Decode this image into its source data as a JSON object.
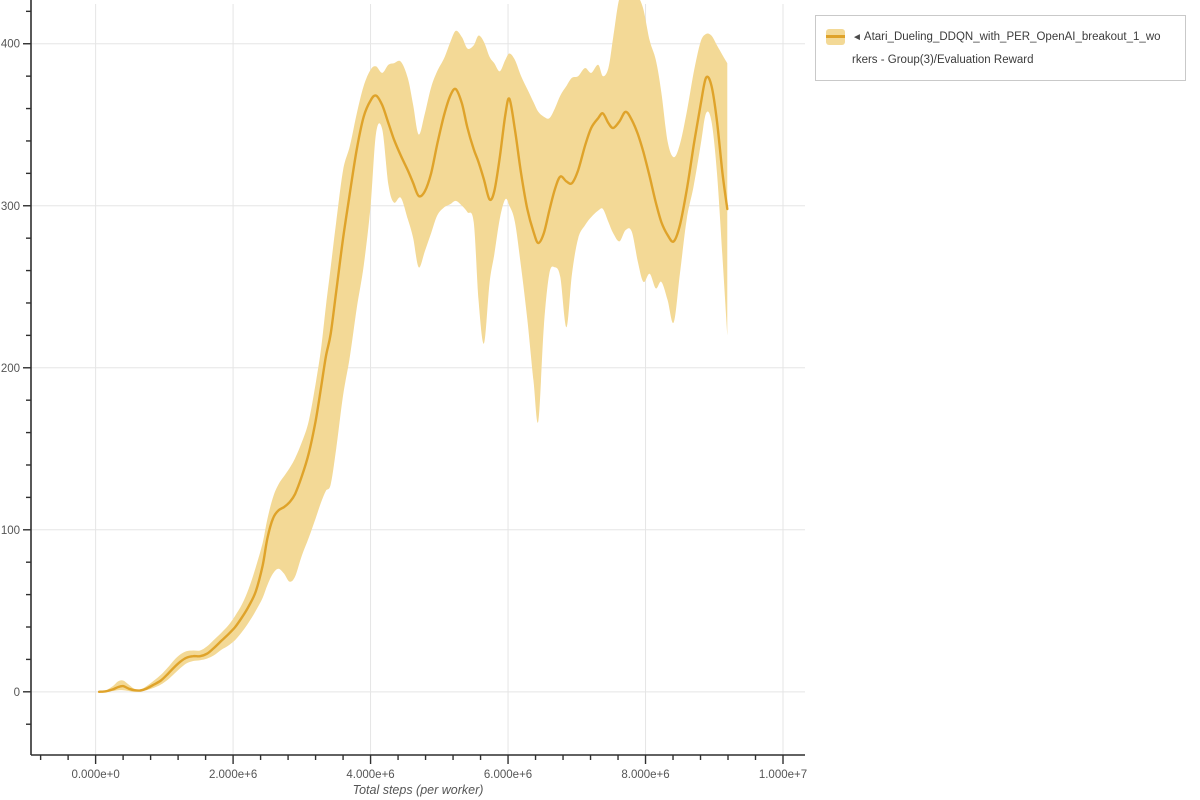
{
  "legend": {
    "prefix_icon": "◄",
    "label_line1": "Atari_Dueling_DDQN_with_PER_OpenAI_breakout_1_wo",
    "label_line2": "rkers - Group(3)/Evaluation Reward",
    "series_full_name": "Atari_Dueling_DDQN_with_PER_OpenAI_breakout_1_workers - Group(3)/Evaluation Reward"
  },
  "colors": {
    "line": "#dfa32a",
    "band": "#f3d996",
    "grid": "#e5e5e5",
    "axis": "#2f2f2f",
    "tick_text": "#555555",
    "legend_border": "#c9c9c9",
    "background": "#ffffff"
  },
  "chart_data": {
    "type": "line",
    "title": "",
    "xlabel": "Total steps (per worker)",
    "ylabel": "",
    "legend_position": "top-right-outside",
    "grid": true,
    "x_unit": "steps (e6)",
    "x_tick_values_e6": [
      0,
      2,
      4,
      6,
      8,
      10
    ],
    "x_tick_labels": [
      "0.000e+0",
      "2.000e+6",
      "4.000e+6",
      "6.000e+6",
      "8.000e+6",
      "1.000e+7"
    ],
    "x_minor_step_e6": 0.4,
    "y_tick_values": [
      0,
      100,
      200,
      300,
      400
    ],
    "y_tick_labels": [
      "0",
      "100",
      "200",
      "300",
      "400"
    ],
    "y_minor_step": 20,
    "xlim_e6": [
      -0.94,
      10.32
    ],
    "ylim": [
      -39,
      427
    ],
    "series": [
      {
        "name": "Atari_Dueling_DDQN_with_PER_OpenAI_breakout_1_workers - Group(3)/Evaluation Reward",
        "color": "#dfa32a",
        "band_color": "#f3d996",
        "points_format": [
          "step_e6",
          "lower",
          "mean",
          "upper"
        ],
        "points": [
          [
            0.05,
            0,
            0,
            0.5
          ],
          [
            0.15,
            0,
            0.3,
            1
          ],
          [
            0.25,
            0.5,
            1.5,
            3.5
          ],
          [
            0.33,
            1,
            3,
            6.5
          ],
          [
            0.4,
            1,
            3.5,
            7
          ],
          [
            0.48,
            0.5,
            2,
            4.5
          ],
          [
            0.56,
            0,
            1,
            2
          ],
          [
            0.65,
            0.3,
            0.8,
            1.5
          ],
          [
            0.74,
            1,
            2,
            3.5
          ],
          [
            0.85,
            2.5,
            4.5,
            7
          ],
          [
            0.95,
            4.5,
            7,
            10.5
          ],
          [
            1.05,
            7.5,
            11,
            15
          ],
          [
            1.14,
            11,
            15,
            19.5
          ],
          [
            1.23,
            14.5,
            18.5,
            23
          ],
          [
            1.32,
            17.5,
            21,
            25
          ],
          [
            1.42,
            19,
            22,
            25.5
          ],
          [
            1.52,
            19.5,
            22,
            25.5
          ],
          [
            1.62,
            20.5,
            23.5,
            28
          ],
          [
            1.72,
            22.5,
            27,
            32
          ],
          [
            1.83,
            26,
            31.5,
            36.5
          ],
          [
            1.93,
            28.5,
            35.5,
            41
          ],
          [
            2.03,
            32,
            40,
            47
          ],
          [
            2.13,
            37,
            46,
            54
          ],
          [
            2.23,
            43,
            53,
            64
          ],
          [
            2.33,
            50,
            62,
            77
          ],
          [
            2.43,
            58,
            78,
            92
          ],
          [
            2.5,
            66,
            95,
            107
          ],
          [
            2.58,
            73,
            107,
            120
          ],
          [
            2.66,
            76,
            112,
            128
          ],
          [
            2.74,
            73,
            114,
            133
          ],
          [
            2.82,
            68,
            117,
            138
          ],
          [
            2.9,
            71,
            122,
            144
          ],
          [
            3.0,
            84,
            133,
            154
          ],
          [
            3.1,
            95,
            147,
            167
          ],
          [
            3.2,
            107,
            167,
            190
          ],
          [
            3.28,
            117,
            188,
            212
          ],
          [
            3.35,
            124,
            207,
            238
          ],
          [
            3.42,
            128,
            221,
            262
          ],
          [
            3.5,
            150,
            247,
            290
          ],
          [
            3.6,
            183,
            280,
            322
          ],
          [
            3.7,
            207,
            308,
            337
          ],
          [
            3.8,
            237,
            335,
            357
          ],
          [
            3.9,
            263,
            355,
            374
          ],
          [
            4.0,
            300,
            365,
            384
          ],
          [
            4.08,
            345,
            368,
            386
          ],
          [
            4.17,
            347,
            362,
            382
          ],
          [
            4.26,
            313,
            351,
            387
          ],
          [
            4.34,
            302,
            341,
            388
          ],
          [
            4.44,
            305,
            331,
            389
          ],
          [
            4.54,
            292,
            322,
            379
          ],
          [
            4.62,
            280,
            314,
            362
          ],
          [
            4.7,
            262,
            306,
            344
          ],
          [
            4.79,
            272,
            309,
            357
          ],
          [
            4.88,
            283,
            320,
            373
          ],
          [
            4.97,
            294,
            338,
            383
          ],
          [
            5.07,
            299,
            356,
            391
          ],
          [
            5.16,
            301,
            368,
            401
          ],
          [
            5.24,
            303,
            372,
            408
          ],
          [
            5.33,
            300,
            363,
            404
          ],
          [
            5.41,
            296,
            348,
            397
          ],
          [
            5.5,
            290,
            335,
            399
          ],
          [
            5.57,
            242,
            327,
            405
          ],
          [
            5.65,
            215,
            316,
            401
          ],
          [
            5.73,
            252,
            304,
            392
          ],
          [
            5.8,
            270,
            309,
            388
          ],
          [
            5.88,
            292,
            330,
            383
          ],
          [
            5.96,
            304,
            356,
            390
          ],
          [
            6.02,
            300,
            366,
            394
          ],
          [
            6.1,
            290,
            347,
            390
          ],
          [
            6.19,
            262,
            320,
            380
          ],
          [
            6.28,
            230,
            298,
            372
          ],
          [
            6.37,
            192,
            284,
            364
          ],
          [
            6.44,
            167,
            277,
            358
          ],
          [
            6.52,
            225,
            283,
            355
          ],
          [
            6.6,
            258,
            297,
            354
          ],
          [
            6.68,
            262,
            310,
            360
          ],
          [
            6.76,
            256,
            318,
            368
          ],
          [
            6.85,
            225,
            315,
            374
          ],
          [
            6.93,
            258,
            314,
            379
          ],
          [
            7.02,
            280,
            322,
            380
          ],
          [
            7.12,
            288,
            337,
            385
          ],
          [
            7.21,
            293,
            348,
            382
          ],
          [
            7.31,
            297,
            354,
            387
          ],
          [
            7.38,
            298,
            357,
            380
          ],
          [
            7.46,
            290,
            351,
            385
          ],
          [
            7.53,
            283,
            348,
            404
          ],
          [
            7.62,
            278,
            352,
            428
          ],
          [
            7.71,
            285,
            358,
            430
          ],
          [
            7.8,
            284,
            353,
            430
          ],
          [
            7.89,
            265,
            344,
            429
          ],
          [
            7.97,
            253,
            333,
            421
          ],
          [
            8.06,
            258,
            318,
            402
          ],
          [
            8.15,
            249,
            302,
            390
          ],
          [
            8.23,
            253,
            290,
            370
          ],
          [
            8.32,
            242,
            282,
            340
          ],
          [
            8.41,
            228,
            278,
            330
          ],
          [
            8.5,
            258,
            288,
            338
          ],
          [
            8.6,
            292,
            310,
            358
          ],
          [
            8.7,
            312,
            337,
            382
          ],
          [
            8.8,
            337,
            362,
            401
          ],
          [
            8.88,
            357,
            379,
            406
          ],
          [
            8.96,
            352,
            374,
            405
          ],
          [
            9.04,
            320,
            352,
            399
          ],
          [
            9.12,
            268,
            320,
            393
          ],
          [
            9.19,
            220,
            298,
            388
          ]
        ]
      }
    ]
  }
}
